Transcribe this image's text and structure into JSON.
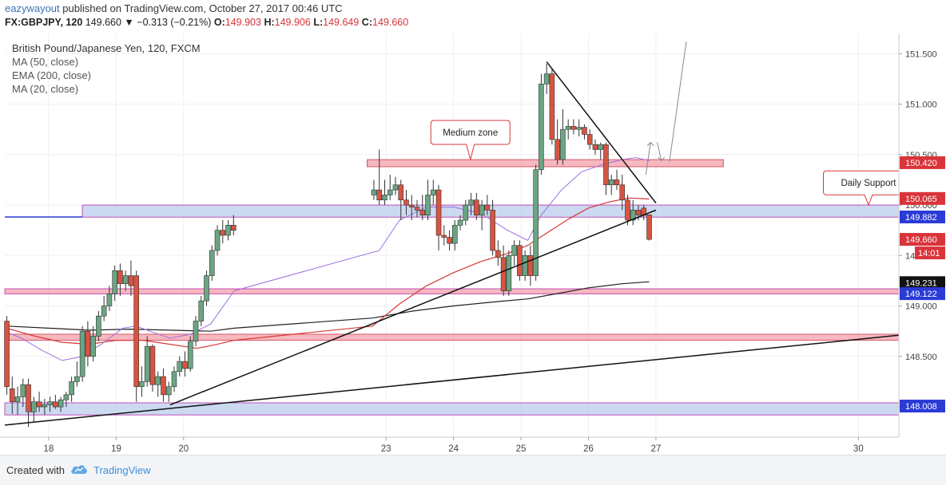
{
  "header": {
    "username": "eazywayout",
    "published_text": "published on TradingView.com, October 27, 2017 00:46 UTC",
    "symbol": "FX:GBPJPY, 120",
    "last_price": "149.660",
    "change": "▼ −0.313 (−0.21%)",
    "ohlc": [
      {
        "label": "O:",
        "value": "149.903"
      },
      {
        "label": "H:",
        "value": "149.906"
      },
      {
        "label": "L:",
        "value": "149.649"
      },
      {
        "label": "C:",
        "value": "149.660"
      }
    ]
  },
  "legend": {
    "title": "British Pound/Japanese Yen, 120, FXCM",
    "indicators": [
      "MA (50, close)",
      "EMA (200, close)",
      "MA (20, close)"
    ]
  },
  "footer": {
    "created_with": "Created with",
    "brand": "TradingView"
  },
  "chart_data": {
    "type": "candlestick",
    "ylim": [
      147.7,
      151.7
    ],
    "y_ticks": [
      "148.000",
      "148.500",
      "149.000",
      "149.500",
      "150.000",
      "150.500",
      "151.000",
      "151.500"
    ],
    "x_range": [
      17.35,
      30.6
    ],
    "x_ticks": [
      {
        "x": 18,
        "label": "18"
      },
      {
        "x": 19,
        "label": "19"
      },
      {
        "x": 20,
        "label": "20"
      },
      {
        "x": 23,
        "label": "23"
      },
      {
        "x": 24,
        "label": "24"
      },
      {
        "x": 25,
        "label": "25"
      },
      {
        "x": 26,
        "label": "26"
      },
      {
        "x": 27,
        "label": "27"
      },
      {
        "x": 30,
        "label": "30"
      }
    ],
    "colors": {
      "up": "#6ba583",
      "down": "#d75442",
      "ma20": "#9c6fe0",
      "ma50": "#d63838",
      "ema200": "#222222",
      "zone_red": "#f4a0aa",
      "zone_blue": "#b9cdeb",
      "zone_border": "#c24fb8"
    },
    "candles": [
      {
        "x": 17.38,
        "o": 148.85,
        "h": 148.9,
        "l": 148.12,
        "c": 148.2
      },
      {
        "x": 17.46,
        "o": 148.18,
        "h": 148.3,
        "l": 147.93,
        "c": 148.05
      },
      {
        "x": 17.54,
        "o": 148.05,
        "h": 148.2,
        "l": 147.92,
        "c": 148.1
      },
      {
        "x": 17.62,
        "o": 148.1,
        "h": 148.28,
        "l": 148.0,
        "c": 148.22
      },
      {
        "x": 17.7,
        "o": 148.22,
        "h": 148.28,
        "l": 147.8,
        "c": 147.95
      },
      {
        "x": 17.78,
        "o": 147.95,
        "h": 148.1,
        "l": 147.85,
        "c": 148.05
      },
      {
        "x": 17.86,
        "o": 148.05,
        "h": 148.15,
        "l": 147.95,
        "c": 148.0
      },
      {
        "x": 17.94,
        "o": 148.0,
        "h": 148.08,
        "l": 147.92,
        "c": 148.02
      },
      {
        "x": 18.02,
        "o": 148.02,
        "h": 148.1,
        "l": 147.95,
        "c": 148.05
      },
      {
        "x": 18.1,
        "o": 148.05,
        "h": 148.12,
        "l": 147.98,
        "c": 148.0
      },
      {
        "x": 18.18,
        "o": 148.0,
        "h": 148.1,
        "l": 147.95,
        "c": 148.07
      },
      {
        "x": 18.26,
        "o": 148.07,
        "h": 148.15,
        "l": 148.0,
        "c": 148.12
      },
      {
        "x": 18.34,
        "o": 148.12,
        "h": 148.3,
        "l": 148.05,
        "c": 148.25
      },
      {
        "x": 18.42,
        "o": 148.25,
        "h": 148.45,
        "l": 148.2,
        "c": 148.3
      },
      {
        "x": 18.5,
        "o": 148.3,
        "h": 148.8,
        "l": 148.25,
        "c": 148.75
      },
      {
        "x": 18.58,
        "o": 148.75,
        "h": 148.85,
        "l": 148.4,
        "c": 148.5
      },
      {
        "x": 18.66,
        "o": 148.5,
        "h": 148.8,
        "l": 148.45,
        "c": 148.7
      },
      {
        "x": 18.74,
        "o": 148.7,
        "h": 148.95,
        "l": 148.65,
        "c": 148.9
      },
      {
        "x": 18.82,
        "o": 148.9,
        "h": 149.1,
        "l": 148.85,
        "c": 149.0
      },
      {
        "x": 18.9,
        "o": 149.0,
        "h": 149.2,
        "l": 148.95,
        "c": 149.12
      },
      {
        "x": 18.98,
        "o": 149.12,
        "h": 149.4,
        "l": 149.05,
        "c": 149.35
      },
      {
        "x": 19.06,
        "o": 149.35,
        "h": 149.42,
        "l": 149.1,
        "c": 149.22
      },
      {
        "x": 19.14,
        "o": 149.22,
        "h": 149.35,
        "l": 149.15,
        "c": 149.3
      },
      {
        "x": 19.22,
        "o": 149.3,
        "h": 149.45,
        "l": 149.1,
        "c": 149.2
      },
      {
        "x": 19.3,
        "o": 149.3,
        "h": 149.35,
        "l": 148.05,
        "c": 148.2
      },
      {
        "x": 19.38,
        "o": 148.2,
        "h": 148.4,
        "l": 148.1,
        "c": 148.25
      },
      {
        "x": 19.46,
        "o": 148.25,
        "h": 148.7,
        "l": 148.2,
        "c": 148.6
      },
      {
        "x": 19.54,
        "o": 148.6,
        "h": 148.62,
        "l": 148.15,
        "c": 148.22
      },
      {
        "x": 19.62,
        "o": 148.22,
        "h": 148.35,
        "l": 148.1,
        "c": 148.3
      },
      {
        "x": 19.7,
        "o": 148.3,
        "h": 148.38,
        "l": 148.05,
        "c": 148.12
      },
      {
        "x": 19.78,
        "o": 148.12,
        "h": 148.25,
        "l": 148.05,
        "c": 148.2
      },
      {
        "x": 19.86,
        "o": 148.2,
        "h": 148.4,
        "l": 148.15,
        "c": 148.35
      },
      {
        "x": 19.94,
        "o": 148.35,
        "h": 148.5,
        "l": 148.3,
        "c": 148.45
      },
      {
        "x": 20.02,
        "o": 148.45,
        "h": 148.55,
        "l": 148.3,
        "c": 148.38
      },
      {
        "x": 20.1,
        "o": 148.38,
        "h": 148.7,
        "l": 148.35,
        "c": 148.65
      },
      {
        "x": 20.18,
        "o": 148.65,
        "h": 148.9,
        "l": 148.6,
        "c": 148.85
      },
      {
        "x": 20.26,
        "o": 148.85,
        "h": 149.1,
        "l": 148.8,
        "c": 149.05
      },
      {
        "x": 20.34,
        "o": 149.05,
        "h": 149.35,
        "l": 149.0,
        "c": 149.3
      },
      {
        "x": 20.42,
        "o": 149.3,
        "h": 149.6,
        "l": 149.25,
        "c": 149.55
      },
      {
        "x": 20.5,
        "o": 149.55,
        "h": 149.8,
        "l": 149.5,
        "c": 149.75
      },
      {
        "x": 20.58,
        "o": 149.75,
        "h": 149.85,
        "l": 149.62,
        "c": 149.7
      },
      {
        "x": 20.66,
        "o": 149.7,
        "h": 149.85,
        "l": 149.65,
        "c": 149.8
      },
      {
        "x": 20.74,
        "o": 149.8,
        "h": 149.9,
        "l": 149.7,
        "c": 149.75
      },
      {
        "x": 22.82,
        "o": 150.1,
        "h": 150.25,
        "l": 150.05,
        "c": 150.15
      },
      {
        "x": 22.9,
        "o": 150.15,
        "h": 150.55,
        "l": 150.0,
        "c": 150.05
      },
      {
        "x": 22.98,
        "o": 150.05,
        "h": 150.25,
        "l": 150.0,
        "c": 150.1
      },
      {
        "x": 23.06,
        "o": 150.1,
        "h": 150.3,
        "l": 150.05,
        "c": 150.15
      },
      {
        "x": 23.14,
        "o": 150.15,
        "h": 150.28,
        "l": 150.1,
        "c": 150.2
      },
      {
        "x": 23.22,
        "o": 150.2,
        "h": 150.25,
        "l": 149.85,
        "c": 150.05
      },
      {
        "x": 23.3,
        "o": 150.05,
        "h": 150.15,
        "l": 149.9,
        "c": 150.0
      },
      {
        "x": 23.38,
        "o": 150.0,
        "h": 150.1,
        "l": 149.85,
        "c": 149.98
      },
      {
        "x": 23.46,
        "o": 149.98,
        "h": 150.05,
        "l": 149.88,
        "c": 149.95
      },
      {
        "x": 23.54,
        "o": 149.95,
        "h": 150.1,
        "l": 149.85,
        "c": 149.9
      },
      {
        "x": 23.62,
        "o": 149.9,
        "h": 150.25,
        "l": 149.85,
        "c": 150.1
      },
      {
        "x": 23.7,
        "o": 150.1,
        "h": 150.25,
        "l": 150.0,
        "c": 150.15
      },
      {
        "x": 23.78,
        "o": 150.15,
        "h": 150.2,
        "l": 149.55,
        "c": 149.7
      },
      {
        "x": 23.86,
        "o": 149.7,
        "h": 149.8,
        "l": 149.6,
        "c": 149.68
      },
      {
        "x": 23.94,
        "o": 149.68,
        "h": 149.75,
        "l": 149.55,
        "c": 149.62
      },
      {
        "x": 24.02,
        "o": 149.62,
        "h": 149.85,
        "l": 149.55,
        "c": 149.8
      },
      {
        "x": 24.1,
        "o": 149.8,
        "h": 149.9,
        "l": 149.75,
        "c": 149.85
      },
      {
        "x": 24.18,
        "o": 149.85,
        "h": 150.05,
        "l": 149.8,
        "c": 150.0
      },
      {
        "x": 24.26,
        "o": 150.0,
        "h": 150.12,
        "l": 149.9,
        "c": 150.05
      },
      {
        "x": 24.34,
        "o": 150.05,
        "h": 150.12,
        "l": 149.85,
        "c": 149.9
      },
      {
        "x": 24.42,
        "o": 149.9,
        "h": 150.05,
        "l": 149.75,
        "c": 150.0
      },
      {
        "x": 24.5,
        "o": 150.0,
        "h": 150.1,
        "l": 149.9,
        "c": 149.95
      },
      {
        "x": 24.58,
        "o": 149.95,
        "h": 150.05,
        "l": 149.5,
        "c": 149.55
      },
      {
        "x": 24.66,
        "o": 149.55,
        "h": 149.65,
        "l": 149.4,
        "c": 149.48
      },
      {
        "x": 24.74,
        "o": 149.48,
        "h": 149.6,
        "l": 149.1,
        "c": 149.15
      },
      {
        "x": 24.82,
        "o": 149.15,
        "h": 149.55,
        "l": 149.1,
        "c": 149.5
      },
      {
        "x": 24.9,
        "o": 149.5,
        "h": 149.65,
        "l": 149.4,
        "c": 149.6
      },
      {
        "x": 24.98,
        "o": 149.6,
        "h": 149.65,
        "l": 149.25,
        "c": 149.3
      },
      {
        "x": 25.06,
        "o": 149.3,
        "h": 149.55,
        "l": 149.25,
        "c": 149.5
      },
      {
        "x": 25.14,
        "o": 149.5,
        "h": 149.6,
        "l": 149.2,
        "c": 149.3
      },
      {
        "x": 25.22,
        "o": 149.3,
        "h": 150.4,
        "l": 149.25,
        "c": 150.35
      },
      {
        "x": 25.3,
        "o": 150.35,
        "h": 151.3,
        "l": 150.3,
        "c": 151.2
      },
      {
        "x": 25.38,
        "o": 151.2,
        "h": 151.4,
        "l": 151.1,
        "c": 151.3
      },
      {
        "x": 25.46,
        "o": 151.3,
        "h": 151.35,
        "l": 150.6,
        "c": 150.65
      },
      {
        "x": 25.54,
        "o": 150.65,
        "h": 150.85,
        "l": 150.4,
        "c": 150.45
      },
      {
        "x": 25.62,
        "o": 150.45,
        "h": 150.95,
        "l": 150.4,
        "c": 150.75
      },
      {
        "x": 25.7,
        "o": 150.75,
        "h": 150.85,
        "l": 150.65,
        "c": 150.78
      },
      {
        "x": 25.78,
        "o": 150.78,
        "h": 150.85,
        "l": 150.7,
        "c": 150.75
      },
      {
        "x": 25.86,
        "o": 150.75,
        "h": 150.85,
        "l": 150.68,
        "c": 150.77
      },
      {
        "x": 25.94,
        "o": 150.77,
        "h": 150.8,
        "l": 150.65,
        "c": 150.7
      },
      {
        "x": 26.02,
        "o": 150.7,
        "h": 150.75,
        "l": 150.55,
        "c": 150.6
      },
      {
        "x": 26.1,
        "o": 150.6,
        "h": 150.65,
        "l": 150.5,
        "c": 150.55
      },
      {
        "x": 26.18,
        "o": 150.55,
        "h": 150.62,
        "l": 150.45,
        "c": 150.6
      },
      {
        "x": 26.26,
        "o": 150.6,
        "h": 150.62,
        "l": 150.1,
        "c": 150.2
      },
      {
        "x": 26.34,
        "o": 150.2,
        "h": 150.3,
        "l": 150.1,
        "c": 150.25
      },
      {
        "x": 26.42,
        "o": 150.25,
        "h": 150.35,
        "l": 150.15,
        "c": 150.2
      },
      {
        "x": 26.5,
        "o": 150.2,
        "h": 150.3,
        "l": 149.95,
        "c": 150.05
      },
      {
        "x": 26.58,
        "o": 150.05,
        "h": 150.1,
        "l": 149.8,
        "c": 149.85
      },
      {
        "x": 26.66,
        "o": 149.85,
        "h": 150.05,
        "l": 149.8,
        "c": 149.95
      },
      {
        "x": 26.74,
        "o": 149.95,
        "h": 150.0,
        "l": 149.85,
        "c": 149.9
      },
      {
        "x": 26.82,
        "o": 149.97,
        "h": 150.0,
        "l": 149.85,
        "c": 149.9
      },
      {
        "x": 26.9,
        "o": 149.903,
        "h": 149.906,
        "l": 149.649,
        "c": 149.66
      }
    ],
    "ma20": [
      [
        17.38,
        148.74
      ],
      [
        17.6,
        148.68
      ],
      [
        17.9,
        148.56
      ],
      [
        18.2,
        148.46
      ],
      [
        18.5,
        148.5
      ],
      [
        18.8,
        148.63
      ],
      [
        19.1,
        148.78
      ],
      [
        19.3,
        148.8
      ],
      [
        19.5,
        148.75
      ],
      [
        19.8,
        148.68
      ],
      [
        20.1,
        148.72
      ],
      [
        20.4,
        148.82
      ],
      [
        20.75,
        149.15
      ],
      [
        22.9,
        149.55
      ],
      [
        23.2,
        149.85
      ],
      [
        23.6,
        149.98
      ],
      [
        24.0,
        149.98
      ],
      [
        24.4,
        149.92
      ],
      [
        24.8,
        149.75
      ],
      [
        25.1,
        149.65
      ],
      [
        25.3,
        149.9
      ],
      [
        25.6,
        150.15
      ],
      [
        25.9,
        150.33
      ],
      [
        26.2,
        150.4
      ],
      [
        26.5,
        150.45
      ],
      [
        26.7,
        150.47
      ],
      [
        26.9,
        150.44
      ]
    ],
    "ma50": [
      [
        17.38,
        148.78
      ],
      [
        17.8,
        148.7
      ],
      [
        18.2,
        148.64
      ],
      [
        18.6,
        148.62
      ],
      [
        19.0,
        148.66
      ],
      [
        19.4,
        148.66
      ],
      [
        19.8,
        148.62
      ],
      [
        20.2,
        148.58
      ],
      [
        20.5,
        148.62
      ],
      [
        20.75,
        148.66
      ],
      [
        22.8,
        148.8
      ],
      [
        23.2,
        149.02
      ],
      [
        23.6,
        149.2
      ],
      [
        24.0,
        149.33
      ],
      [
        24.4,
        149.44
      ],
      [
        24.8,
        149.52
      ],
      [
        25.1,
        149.6
      ],
      [
        25.4,
        149.73
      ],
      [
        25.7,
        149.86
      ],
      [
        26.0,
        149.97
      ],
      [
        26.3,
        150.03
      ],
      [
        26.6,
        150.07
      ],
      [
        26.9,
        150.06
      ]
    ],
    "ema200": [
      [
        17.38,
        148.8
      ],
      [
        18.0,
        148.78
      ],
      [
        18.6,
        148.76
      ],
      [
        19.2,
        148.77
      ],
      [
        19.8,
        148.76
      ],
      [
        20.4,
        148.75
      ],
      [
        20.75,
        148.78
      ],
      [
        22.8,
        148.88
      ],
      [
        23.4,
        148.95
      ],
      [
        24.0,
        149.0
      ],
      [
        24.6,
        149.04
      ],
      [
        25.1,
        149.07
      ],
      [
        25.6,
        149.13
      ],
      [
        26.0,
        149.18
      ],
      [
        26.5,
        149.22
      ],
      [
        26.9,
        149.24
      ]
    ],
    "zones": [
      {
        "name": "resistance-zone",
        "y1": 150.38,
        "y2": 150.45,
        "x1": 22.72,
        "x2": 28.0,
        "fill": "#f4a0aa",
        "stroke": "#d45a6a"
      },
      {
        "name": "daily-support-zone",
        "y1": 149.88,
        "y2": 150.0,
        "x1": 18.5,
        "x2": 30.6,
        "fill": "#b9cdeb",
        "stroke": "#c24fb8"
      },
      {
        "name": "mid-support-zone",
        "y1": 149.12,
        "y2": 149.17,
        "x1": 17.35,
        "x2": 30.6,
        "fill": "#f4a0aa",
        "stroke": "#c24fb8"
      },
      {
        "name": "lower-resistance-zone",
        "y1": 148.66,
        "y2": 148.72,
        "x1": 17.35,
        "x2": 30.6,
        "fill": "#f4a0aa",
        "stroke": "#d45a6a"
      },
      {
        "name": "bottom-support-zone",
        "y1": 147.92,
        "y2": 148.04,
        "x1": 17.35,
        "x2": 30.6,
        "fill": "#b9cdeb",
        "stroke": "#c24fb8"
      }
    ],
    "horizontal_lines": [
      {
        "name": "blue-level-line",
        "y": 149.882,
        "x1": 17.35,
        "x2": 18.5,
        "color": "#2b3bd6"
      }
    ],
    "trendlines": [
      {
        "name": "long-term-trendline",
        "x1": 17.35,
        "y1": 147.82,
        "x2": 30.6,
        "y2": 148.71,
        "color": "#111111",
        "width": 1.5
      },
      {
        "name": "rising-trendline",
        "x1": 19.8,
        "y1": 148.02,
        "x2": 27.0,
        "y2": 149.95,
        "color": "#111111",
        "width": 1.5
      },
      {
        "name": "descending-trendline",
        "x1": 25.38,
        "y1": 151.42,
        "x2": 27.0,
        "y2": 150.02,
        "color": "#111111",
        "width": 1.5
      },
      {
        "name": "projection-line",
        "x1": 27.2,
        "y1": 150.43,
        "x2": 27.45,
        "y2": 151.62,
        "color": "#888888",
        "width": 1
      }
    ],
    "annotations": [
      {
        "name": "medium-zone-callout",
        "text": "Medium zone",
        "x": 24.25,
        "y": 150.72,
        "pointer_x": 24.25,
        "pointer_y": 150.45
      },
      {
        "name": "daily-support-callout",
        "text": "Daily Support",
        "x": 30.15,
        "y": 150.22,
        "pointer_x": 30.15,
        "pointer_y": 150.0
      }
    ],
    "price_labels": [
      {
        "value": 150.42,
        "text": "150.420",
        "bg": "#d9343a",
        "color": "#ffffff"
      },
      {
        "value": 150.065,
        "text": "150.065",
        "bg": "#d9343a",
        "color": "#ffffff"
      },
      {
        "value": 149.882,
        "text": "149.882",
        "bg": "#2b3bd6",
        "color": "#ffffff"
      },
      {
        "value": 149.66,
        "text": "149.660",
        "bg": "#d9343a",
        "color": "#ffffff"
      },
      {
        "value": 149.231,
        "text": "149.231",
        "bg": "#111111",
        "color": "#ffffff"
      },
      {
        "value": 149.122,
        "text": "149.122",
        "bg": "#2b3bd6",
        "color": "#ffffff"
      },
      {
        "value": 148.008,
        "text": "148.008",
        "bg": "#2b3bd6",
        "color": "#ffffff"
      }
    ],
    "countdown": "14:01"
  }
}
